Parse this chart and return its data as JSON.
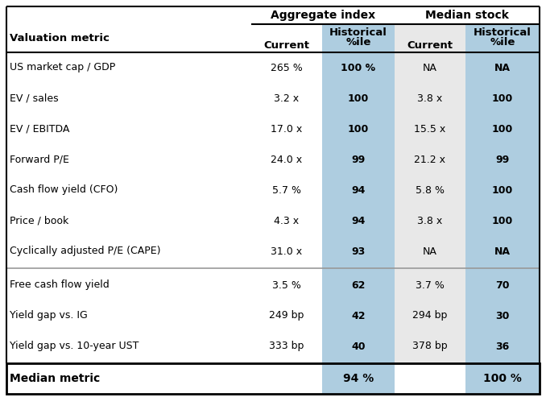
{
  "header_group1": "Aggregate index",
  "header_group2": "Median stock",
  "col_headers": [
    "Valuation metric",
    "Current",
    "Historical\n%ile",
    "Current",
    "Historical\n%ile"
  ],
  "rows": [
    [
      "US market cap / GDP",
      "265 %",
      "100 %",
      "NA",
      "NA"
    ],
    [
      "EV / sales",
      "3.2 x",
      "100",
      "3.8 x",
      "100"
    ],
    [
      "EV / EBITDA",
      "17.0 x",
      "100",
      "15.5 x",
      "100"
    ],
    [
      "Forward P/E",
      "24.0 x",
      "99",
      "21.2 x",
      "99"
    ],
    [
      "Cash flow yield (CFO)",
      "5.7 %",
      "94",
      "5.8 %",
      "100"
    ],
    [
      "Price / book",
      "4.3 x",
      "94",
      "3.8 x",
      "100"
    ],
    [
      "Cyclically adjusted P/E (CAPE)",
      "31.0 x",
      "93",
      "NA",
      "NA"
    ],
    [
      "Free cash flow yield",
      "3.5 %",
      "62",
      "3.7 %",
      "70"
    ],
    [
      "Yield gap vs. IG",
      "249 bp",
      "42",
      "294 bp",
      "30"
    ],
    [
      "Yield gap vs. 10-year UST",
      "333 bp",
      "40",
      "378 bp",
      "36"
    ]
  ],
  "footer": [
    "Median metric",
    "",
    "94 %",
    "",
    "100 %"
  ],
  "blue_bg_color": "#aecde0",
  "gray_bg_color": "#e8e8e8",
  "separator_after_row_idx": 7,
  "fig_bg": "#ffffff"
}
